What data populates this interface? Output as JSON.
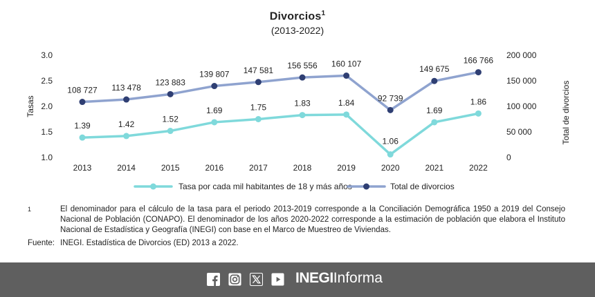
{
  "header": {
    "title": "Divorcios",
    "title_note": "1",
    "subtitle": "(2013-2022)"
  },
  "chart_data": {
    "type": "line",
    "categories": [
      "2013",
      "2014",
      "2015",
      "2016",
      "2017",
      "2018",
      "2019",
      "2020",
      "2021",
      "2022"
    ],
    "y_left": {
      "label": "Tasas",
      "ylim": [
        1.0,
        3.0
      ],
      "ticks": [
        "1.0",
        "1.5",
        "2.0",
        "2.5",
        "3.0"
      ]
    },
    "y_right": {
      "label": "Total de divorcios",
      "ylim": [
        0,
        200000
      ],
      "ticks": [
        "0",
        "50 000",
        "100 000",
        "150 000",
        "200 000"
      ]
    },
    "series": [
      {
        "name": "Tasa por cada mil habitantes de 18 y más años",
        "axis": "left",
        "color": "#7fd9db",
        "values": [
          1.39,
          1.42,
          1.52,
          1.69,
          1.75,
          1.83,
          1.84,
          1.06,
          1.69,
          1.86
        ],
        "labels": [
          "1.39",
          "1.42",
          "1.52",
          "1.69",
          "1.75",
          "1.83",
          "1.84",
          "1.06",
          "1.69",
          "1.86"
        ]
      },
      {
        "name": "Total de divorcios",
        "axis": "right",
        "color": "#8fa3cf",
        "marker_color": "#2f3f73",
        "values": [
          108727,
          113478,
          123883,
          139807,
          147581,
          156556,
          160107,
          92739,
          149675,
          166766
        ],
        "labels": [
          "108 727",
          "113 478",
          "123 883",
          "139 807",
          "147 581",
          "156 556",
          "160 107",
          "92 739",
          "149 675",
          "166 766"
        ]
      }
    ],
    "grid": false,
    "legend": "bottom"
  },
  "notes": {
    "note1_mark": "1",
    "note1_text": "El denominador para el cálculo de la tasa para el periodo 2013-2019 corresponde a la Conciliación Demográfica 1950 a 2019 del Consejo Nacional de Población (CONAPO). El denominador de los años 2020-2022 corresponde a la estimación de población que elabora el Instituto Nacional de Estadística y Geografía (INEGI) con base en el Marco de Muestreo de Viviendas.",
    "source_label": "Fuente:",
    "source_text": "INEGI. Estadística de Divorcios (ED) 2013 a 2022."
  },
  "footer": {
    "icons": [
      "facebook-icon",
      "instagram-icon",
      "x-icon",
      "youtube-icon"
    ],
    "brand_bold": "INEGI",
    "brand_rest": "Informa",
    "bg_color": "#5f5f5f"
  }
}
